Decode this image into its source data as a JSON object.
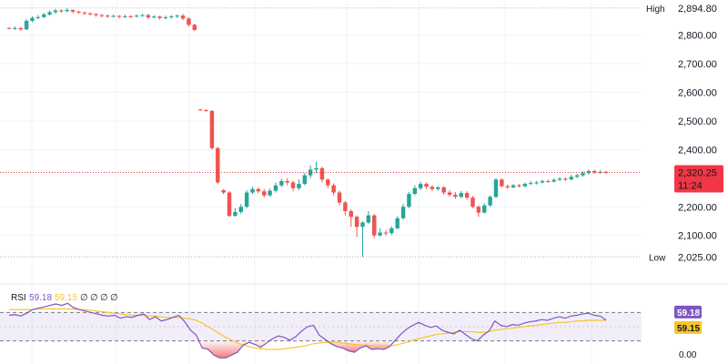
{
  "chart_data": {
    "type": "candlestick",
    "price_axis": {
      "ticks": [
        "2,800.00",
        "2,700.00",
        "2,600.00",
        "2,500.00",
        "2,400.00",
        "2,200.00",
        "2,100.00"
      ],
      "tick_values": [
        2800,
        2700,
        2600,
        2500,
        2400,
        2200,
        2100
      ],
      "range": [
        2010,
        2910
      ]
    },
    "high": {
      "label": "High",
      "value": "2,894.80",
      "num": 2894.8
    },
    "low": {
      "label": "Low",
      "value": "2,025.00",
      "num": 2025.0
    },
    "last": {
      "value": "2,320.25",
      "num": 2320.25,
      "countdown": "11:24"
    },
    "colors": {
      "up": "#26a69a",
      "down": "#ef5350",
      "rsi_line": "#7e57c2",
      "rsi_ma": "#f7c52b",
      "last_badge": "#f23645"
    },
    "candles": [
      [
        2825,
        2822,
        2820,
        2827
      ],
      [
        2822,
        2825,
        2818,
        2830
      ],
      [
        2825,
        2820,
        2815,
        2828
      ],
      [
        2820,
        2850,
        2818,
        2856
      ],
      [
        2850,
        2860,
        2845,
        2866
      ],
      [
        2860,
        2863,
        2855,
        2870
      ],
      [
        2863,
        2872,
        2860,
        2878
      ],
      [
        2872,
        2880,
        2868,
        2886
      ],
      [
        2880,
        2886,
        2875,
        2892
      ],
      [
        2886,
        2884,
        2878,
        2890
      ],
      [
        2884,
        2888,
        2880,
        2894
      ],
      [
        2888,
        2882,
        2876,
        2890
      ],
      [
        2882,
        2879,
        2874,
        2885
      ],
      [
        2879,
        2876,
        2870,
        2882
      ],
      [
        2876,
        2874,
        2868,
        2880
      ],
      [
        2874,
        2870,
        2864,
        2876
      ],
      [
        2870,
        2868,
        2862,
        2874
      ],
      [
        2868,
        2866,
        2860,
        2872
      ],
      [
        2866,
        2867,
        2862,
        2872
      ],
      [
        2867,
        2864,
        2858,
        2870
      ],
      [
        2864,
        2866,
        2860,
        2872
      ],
      [
        2866,
        2865,
        2860,
        2870
      ],
      [
        2865,
        2868,
        2862,
        2872
      ],
      [
        2868,
        2870,
        2864,
        2874
      ],
      [
        2870,
        2862,
        2856,
        2874
      ],
      [
        2862,
        2865,
        2858,
        2870
      ],
      [
        2865,
        2860,
        2854,
        2868
      ],
      [
        2860,
        2862,
        2856,
        2868
      ],
      [
        2862,
        2865,
        2858,
        2870
      ],
      [
        2865,
        2868,
        2860,
        2872
      ],
      [
        2868,
        2858,
        2852,
        2874
      ],
      [
        2858,
        2836,
        2830,
        2862
      ],
      [
        2836,
        2818,
        2814,
        2840
      ],
      [
        2540,
        2538,
        2535,
        2542
      ],
      [
        2538,
        2535,
        2532,
        2541
      ],
      [
        2535,
        2405,
        2400,
        2538
      ],
      [
        2405,
        2285,
        2280,
        2410
      ],
      [
        2258,
        2250,
        2244,
        2262
      ],
      [
        2250,
        2168,
        2165,
        2255
      ],
      [
        2168,
        2182,
        2166,
        2195
      ],
      [
        2182,
        2200,
        2175,
        2210
      ],
      [
        2200,
        2250,
        2195,
        2258
      ],
      [
        2250,
        2262,
        2244,
        2270
      ],
      [
        2262,
        2254,
        2248,
        2268
      ],
      [
        2254,
        2240,
        2232,
        2262
      ],
      [
        2240,
        2256,
        2235,
        2264
      ],
      [
        2256,
        2275,
        2250,
        2285
      ],
      [
        2275,
        2290,
        2268,
        2298
      ],
      [
        2290,
        2285,
        2275,
        2300
      ],
      [
        2285,
        2265,
        2255,
        2292
      ],
      [
        2265,
        2280,
        2258,
        2296
      ],
      [
        2280,
        2310,
        2275,
        2318
      ],
      [
        2310,
        2330,
        2300,
        2345
      ],
      [
        2330,
        2335,
        2318,
        2358
      ],
      [
        2335,
        2295,
        2285,
        2340
      ],
      [
        2295,
        2275,
        2265,
        2300
      ],
      [
        2275,
        2250,
        2240,
        2282
      ],
      [
        2250,
        2215,
        2205,
        2256
      ],
      [
        2215,
        2185,
        2170,
        2220
      ],
      [
        2185,
        2165,
        2130,
        2192
      ],
      [
        2165,
        2130,
        2095,
        2170
      ],
      [
        2130,
        2145,
        2025,
        2150
      ],
      [
        2145,
        2170,
        2140,
        2185
      ],
      [
        2170,
        2100,
        2090,
        2175
      ],
      [
        2100,
        2110,
        2095,
        2125
      ],
      [
        2110,
        2108,
        2098,
        2118
      ],
      [
        2108,
        2125,
        2102,
        2132
      ],
      [
        2125,
        2160,
        2120,
        2168
      ],
      [
        2160,
        2200,
        2155,
        2210
      ],
      [
        2200,
        2245,
        2195,
        2252
      ],
      [
        2245,
        2265,
        2240,
        2275
      ],
      [
        2265,
        2280,
        2258,
        2288
      ],
      [
        2280,
        2270,
        2262,
        2285
      ],
      [
        2270,
        2262,
        2255,
        2275
      ],
      [
        2262,
        2268,
        2256,
        2272
      ],
      [
        2268,
        2250,
        2242,
        2272
      ],
      [
        2250,
        2242,
        2235,
        2258
      ],
      [
        2242,
        2235,
        2228,
        2252
      ],
      [
        2235,
        2248,
        2230,
        2255
      ],
      [
        2248,
        2232,
        2225,
        2254
      ],
      [
        2232,
        2200,
        2195,
        2238
      ],
      [
        2200,
        2180,
        2165,
        2206
      ],
      [
        2180,
        2205,
        2176,
        2212
      ],
      [
        2205,
        2235,
        2200,
        2240
      ],
      [
        2235,
        2295,
        2230,
        2300
      ],
      [
        2295,
        2272,
        2268,
        2300
      ],
      [
        2272,
        2268,
        2262,
        2278
      ],
      [
        2268,
        2275,
        2265,
        2280
      ],
      [
        2275,
        2272,
        2268,
        2280
      ],
      [
        2272,
        2280,
        2268,
        2285
      ],
      [
        2280,
        2283,
        2276,
        2290
      ],
      [
        2283,
        2285,
        2278,
        2290
      ],
      [
        2285,
        2290,
        2282,
        2295
      ],
      [
        2290,
        2288,
        2284,
        2295
      ],
      [
        2288,
        2294,
        2285,
        2300
      ],
      [
        2294,
        2298,
        2290,
        2304
      ],
      [
        2298,
        2296,
        2290,
        2303
      ],
      [
        2296,
        2305,
        2292,
        2312
      ],
      [
        2305,
        2310,
        2300,
        2315
      ],
      [
        2310,
        2318,
        2305,
        2325
      ],
      [
        2318,
        2325,
        2312,
        2330
      ],
      [
        2325,
        2320,
        2315,
        2330
      ],
      [
        2320,
        2322,
        2316,
        2328
      ],
      [
        2322,
        2320.25,
        2316,
        2326
      ]
    ],
    "rsi": {
      "label": "RSI",
      "value": "59.18",
      "ma_value": "59.15",
      "ma_display": "59.15",
      "legend_extra": [
        "∅",
        "∅",
        "∅",
        "∅"
      ],
      "upper": 70,
      "lower": 30,
      "range": [
        0,
        100
      ],
      "tick": "0.00",
      "line": [
        66,
        67,
        65,
        69,
        74,
        76,
        78,
        80,
        82,
        80,
        83,
        77,
        74,
        72,
        70,
        68,
        66,
        65,
        66,
        62,
        64,
        63,
        66,
        68,
        60,
        64,
        58,
        60,
        63,
        66,
        57,
        45,
        38,
        20,
        18,
        10,
        6,
        6,
        10,
        14,
        24,
        28,
        25,
        21,
        27,
        33,
        37,
        35,
        31,
        36,
        44,
        50,
        52,
        38,
        32,
        26,
        22,
        20,
        16,
        14,
        20,
        23,
        18,
        19,
        18,
        22,
        31,
        40,
        47,
        52,
        56,
        52,
        49,
        51,
        45,
        42,
        40,
        45,
        39,
        33,
        30,
        38,
        44,
        58,
        52,
        50,
        53,
        52,
        55,
        57,
        58,
        60,
        59,
        62,
        64,
        62,
        65,
        66,
        68,
        69,
        66,
        65,
        59.18
      ],
      "ma": [
        74,
        74,
        74,
        74,
        74,
        75,
        75,
        75,
        75,
        75,
        75,
        75,
        74,
        74,
        73,
        72,
        71,
        70,
        69,
        68,
        67,
        66,
        66,
        66,
        65,
        65,
        64,
        63,
        63,
        63,
        62,
        61,
        59,
        55,
        50,
        45,
        40,
        35,
        31,
        27,
        24,
        22,
        20,
        19,
        18,
        18,
        18,
        19,
        20,
        21,
        22,
        24,
        26,
        27,
        28,
        28,
        28,
        27,
        26,
        25,
        24,
        24,
        23,
        23,
        23,
        23,
        24,
        26,
        28,
        31,
        33,
        35,
        37,
        39,
        40,
        41,
        42,
        43,
        43,
        43,
        42,
        42,
        43,
        45,
        46,
        47,
        48,
        49,
        50,
        51,
        52,
        53,
        54,
        55,
        56,
        56,
        57,
        58,
        58,
        59,
        59,
        59,
        59.15
      ]
    }
  }
}
